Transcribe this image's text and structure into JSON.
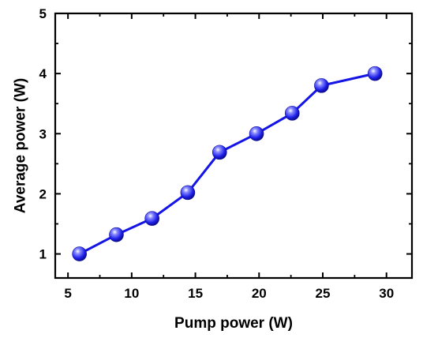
{
  "chart_data": {
    "type": "line",
    "title": "",
    "xlabel": "Pump power (W)",
    "ylabel": "Average power (W)",
    "xlim": [
      4,
      32
    ],
    "ylim": [
      0.6,
      5
    ],
    "xticks": [
      5,
      10,
      15,
      20,
      25,
      30
    ],
    "yticks": [
      1,
      2,
      3,
      4,
      5
    ],
    "xtick_labels": [
      "5",
      "10",
      "15",
      "20",
      "25",
      "30"
    ],
    "ytick_labels": [
      "1",
      "2",
      "3",
      "4",
      "5"
    ],
    "grid": false,
    "series": [
      {
        "x": [
          5.9,
          8.8,
          11.6,
          14.4,
          16.9,
          19.8,
          22.6,
          24.9,
          29.1
        ],
        "y": [
          1.0,
          1.32,
          1.59,
          2.02,
          2.69,
          3.0,
          3.34,
          3.8,
          4.0
        ],
        "color": "#1414e6",
        "marker": "sphere"
      }
    ]
  }
}
